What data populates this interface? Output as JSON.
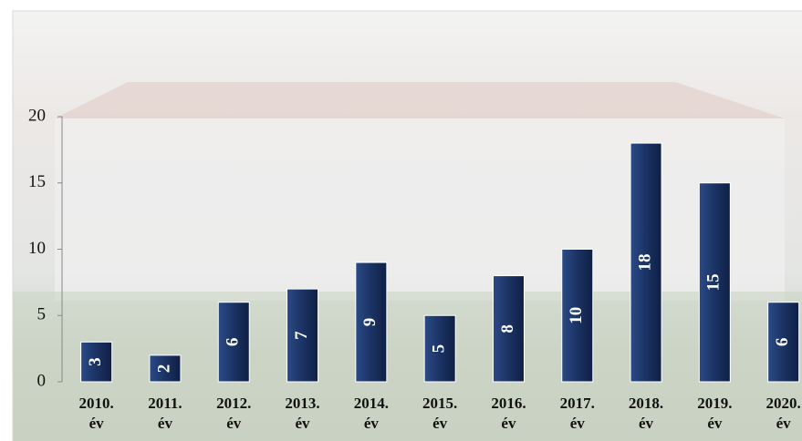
{
  "chart_data": {
    "type": "bar",
    "categories": [
      "2010. év",
      "2011. év",
      "2012. év",
      "2013. év",
      "2014. év",
      "2015. év",
      "2016. év",
      "2017. év",
      "2018. év",
      "2019. év",
      "2020. év"
    ],
    "values": [
      3,
      2,
      6,
      7,
      9,
      5,
      8,
      10,
      18,
      15,
      6
    ],
    "color": "#1b3364",
    "ylim": [
      0,
      20
    ],
    "yticks": [
      0,
      5,
      10,
      15,
      20
    ],
    "grid": false
  }
}
